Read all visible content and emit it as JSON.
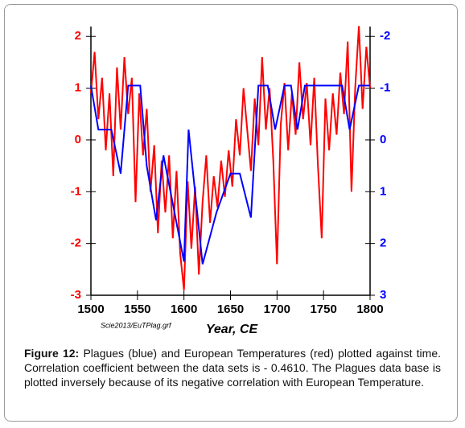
{
  "chart_data": {
    "type": "line",
    "x_label": "Year, CE",
    "annotation": "Scie2013/EuTPlag.grf",
    "xlim": [
      1500,
      1800
    ],
    "xticks": [
      1500,
      1550,
      1600,
      1650,
      1700,
      1750,
      1800
    ],
    "ylim": [
      -3,
      2.19
    ],
    "yticks": [
      2,
      1,
      0,
      -1,
      -2,
      -3
    ],
    "y2lim": [
      3,
      -2.19
    ],
    "y2ticks": [
      -2,
      -1,
      0,
      1,
      2,
      3
    ],
    "grid": false,
    "series": [
      {
        "name": "European Temperatures",
        "color": "#ff0000",
        "x": [
          1500,
          1504,
          1508,
          1512,
          1516,
          1520,
          1524,
          1528,
          1532,
          1536,
          1540,
          1544,
          1548,
          1552,
          1556,
          1560,
          1564,
          1568,
          1572,
          1576,
          1580,
          1584,
          1588,
          1592,
          1596,
          1600,
          1604,
          1608,
          1612,
          1616,
          1620,
          1624,
          1628,
          1632,
          1636,
          1640,
          1644,
          1648,
          1652,
          1656,
          1660,
          1664,
          1668,
          1672,
          1676,
          1680,
          1684,
          1688,
          1692,
          1696,
          1700,
          1704,
          1708,
          1712,
          1716,
          1720,
          1724,
          1728,
          1732,
          1736,
          1740,
          1744,
          1748,
          1752,
          1756,
          1760,
          1764,
          1768,
          1772,
          1776,
          1780,
          1784,
          1788,
          1792,
          1796,
          1800
        ],
        "values": [
          0.9,
          1.7,
          0.4,
          1.2,
          -0.2,
          0.9,
          -0.7,
          1.4,
          0.2,
          1.6,
          0.5,
          1.2,
          -1.2,
          0.9,
          -0.3,
          0.6,
          -1.0,
          -0.1,
          -1.8,
          -0.4,
          -1.4,
          -0.3,
          -1.9,
          -0.6,
          -2.2,
          -2.9,
          -0.8,
          -2.1,
          -0.9,
          -2.6,
          -1.2,
          -0.3,
          -1.6,
          -0.7,
          -1.3,
          -0.4,
          -1.1,
          -0.2,
          -0.9,
          0.4,
          -0.3,
          1.0,
          0.2,
          -0.6,
          0.8,
          -0.1,
          1.6,
          0.2,
          1.0,
          -0.4,
          -2.4,
          0.3,
          1.1,
          -0.2,
          0.9,
          0.1,
          1.5,
          0.4,
          1.1,
          -0.1,
          1.2,
          -0.5,
          -1.9,
          0.8,
          -0.2,
          0.9,
          0.1,
          1.3,
          0.5,
          1.9,
          -1.0,
          1.0,
          2.2,
          0.6,
          1.8,
          1.0
        ]
      },
      {
        "name": "Plagues",
        "color": "#0000ff",
        "axis": "y2",
        "x": [
          1500,
          1508,
          1522,
          1532,
          1540,
          1553,
          1560,
          1570,
          1578,
          1600,
          1605,
          1620,
          1635,
          1650,
          1660,
          1672,
          1680,
          1690,
          1698,
          1708,
          1715,
          1722,
          1730,
          1770,
          1778,
          1788,
          1800
        ],
        "values": [
          -1.05,
          -0.2,
          -0.2,
          0.65,
          -1.05,
          -1.05,
          0.5,
          1.55,
          0.3,
          2.35,
          -0.2,
          2.4,
          1.4,
          0.65,
          0.65,
          1.5,
          -1.05,
          -1.05,
          -0.2,
          -1.05,
          -1.05,
          -0.2,
          -1.05,
          -1.05,
          -0.2,
          -1.05,
          -1.05
        ]
      }
    ]
  },
  "caption": {
    "label": "Figure 12:",
    "text": "Plagues (blue) and European Temperatures (red) plotted against time. Correlation coefficient between the data sets is - 0.4610. The Plagues data base is plotted inversely because of its negative correlation with European Temperature."
  }
}
